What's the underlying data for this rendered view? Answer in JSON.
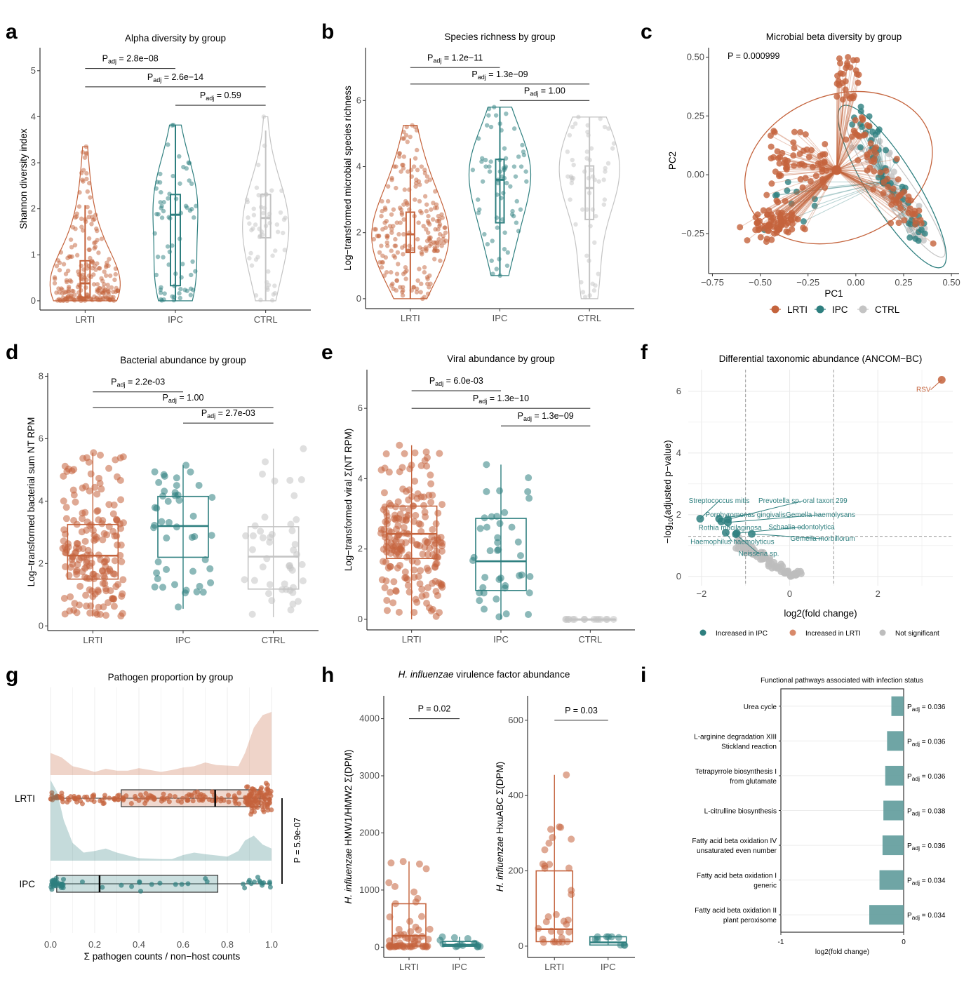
{
  "colors": {
    "LRTI": "#c4633c",
    "IPC": "#2e7f7f",
    "CTRL": "#c4c4c4"
  },
  "chart_data": [
    {
      "panel": "a",
      "type": "violin",
      "title": "Alpha diversity by group",
      "xlabel": "",
      "ylabel": "Shannon diversity index",
      "categories": [
        "LRTI",
        "IPC",
        "CTRL"
      ],
      "ylim": [
        -0.2,
        5.5
      ],
      "yticks": [
        0,
        1,
        2,
        3,
        4,
        5
      ],
      "box": [
        {
          "group": "LRTI",
          "min": 0,
          "q1": 0.08,
          "median": 0.38,
          "q3": 0.87,
          "max": 2.08,
          "vmax": 3.35
        },
        {
          "group": "IPC",
          "min": 0,
          "q1": 0.33,
          "median": 1.87,
          "q3": 2.31,
          "max": 3.82,
          "vmax": 3.82
        },
        {
          "group": "CTRL",
          "min": 0,
          "q1": 1.37,
          "median": 1.8,
          "q3": 2.31,
          "max": 3.7,
          "vmax": 4.0
        }
      ],
      "comparisons": [
        {
          "from": "LRTI",
          "to": "IPC",
          "label": "2.8e−08",
          "y": 5.05
        },
        {
          "from": "LRTI",
          "to": "CTRL",
          "label": "2.6e−14",
          "y": 4.65
        },
        {
          "from": "IPC",
          "to": "CTRL",
          "label": "0.59",
          "y": 4.25
        }
      ]
    },
    {
      "panel": "b",
      "type": "violin",
      "title": "Species richness by group",
      "xlabel": "",
      "ylabel": "Log−transformed microbial species richness",
      "categories": [
        "LRTI",
        "IPC",
        "CTRL"
      ],
      "ylim": [
        -0.3,
        7.6
      ],
      "yticks": [
        0,
        2,
        4,
        6
      ],
      "box": [
        {
          "group": "LRTI",
          "min": 0,
          "q1": 1.4,
          "median": 1.95,
          "q3": 2.62,
          "max": 4.25,
          "vmax": 5.25
        },
        {
          "group": "IPC",
          "min": 0.7,
          "q1": 2.3,
          "median": 3.6,
          "q3": 4.22,
          "max": 5.8,
          "vmax": 5.8
        },
        {
          "group": "CTRL",
          "min": 0,
          "q1": 2.4,
          "median": 3.35,
          "q3": 4.02,
          "max": 5.5,
          "vmax": 5.5
        }
      ],
      "comparisons": [
        {
          "from": "LRTI",
          "to": "IPC",
          "label": "1.2e−11",
          "y": 7.0
        },
        {
          "from": "LRTI",
          "to": "CTRL",
          "label": "1.3e−09",
          "y": 6.5
        },
        {
          "from": "IPC",
          "to": "CTRL",
          "label": "1.00",
          "y": 6.0
        }
      ]
    },
    {
      "panel": "c",
      "type": "scatter",
      "title": "Microbial beta diversity by group",
      "xlabel": "PC1",
      "ylabel": "PC2",
      "xlim": [
        -0.77,
        0.54
      ],
      "ylim": [
        -0.42,
        0.54
      ],
      "xticks": [
        -0.75,
        -0.5,
        -0.25,
        0.0,
        0.25,
        0.5
      ],
      "xticklabels": [
        "−0.75",
        "−0.50",
        "−0.25",
        "0.00",
        "0.25",
        "0.50"
      ],
      "yticks": [
        -0.25,
        0.0,
        0.25,
        0.5
      ],
      "yticklabels": [
        "−0.25",
        "0.00",
        "0.25",
        "0.50"
      ],
      "annotation": "P = 0.000999",
      "centroids": [
        {
          "group": "LRTI",
          "x": -0.1,
          "y": 0.02
        },
        {
          "group": "IPC",
          "x": 0.15,
          "y": -0.03
        },
        {
          "group": "CTRL",
          "x": 0.19,
          "y": -0.03
        }
      ],
      "legend": [
        "LRTI",
        "IPC",
        "CTRL"
      ],
      "legend_position": "bottom"
    },
    {
      "panel": "d",
      "type": "box",
      "title": "Bacterial abundance by group",
      "xlabel": "",
      "ylabel": "Log−transformed bacterial sum NT RPM",
      "categories": [
        "LRTI",
        "IPC",
        "CTRL"
      ],
      "ylim": [
        -0.15,
        8.1
      ],
      "yticks": [
        0,
        2,
        4,
        6,
        8
      ],
      "box": [
        {
          "group": "LRTI",
          "min": 0.3,
          "q1": 1.5,
          "median": 2.25,
          "q3": 3.25,
          "max": 5.55
        },
        {
          "group": "IPC",
          "min": 0.55,
          "q1": 2.2,
          "median": 3.2,
          "q3": 4.15,
          "max": 5.15
        },
        {
          "group": "CTRL",
          "min": 0.28,
          "q1": 1.18,
          "median": 2.22,
          "q3": 3.18,
          "max": 5.68
        }
      ],
      "comparisons": [
        {
          "from": "LRTI",
          "to": "IPC",
          "label": "2.2e-03",
          "y": 7.5
        },
        {
          "from": "LRTI",
          "to": "CTRL",
          "label": "1.00",
          "y": 7.0
        },
        {
          "from": "IPC",
          "to": "CTRL",
          "label": "2.7e-03",
          "y": 6.5
        }
      ]
    },
    {
      "panel": "e",
      "type": "box",
      "title": "Viral abundance by group",
      "xlabel": "",
      "ylabel": "Log−transformed viral Σ(NT RPM)",
      "categories": [
        "LRTI",
        "IPC",
        "CTRL"
      ],
      "ylim": [
        -0.3,
        7.1
      ],
      "yticks": [
        0,
        2,
        4,
        6
      ],
      "box": [
        {
          "group": "LRTI",
          "min": 0,
          "q1": 1.73,
          "median": 2.43,
          "q3": 3.22,
          "max": 4.95
        },
        {
          "group": "IPC",
          "min": 0,
          "q1": 0.82,
          "median": 1.65,
          "q3": 2.87,
          "max": 4.4
        },
        {
          "group": "CTRL",
          "min": 0,
          "q1": 0,
          "median": 0,
          "q3": 0,
          "max": 0
        }
      ],
      "comparisons": [
        {
          "from": "LRTI",
          "to": "IPC",
          "label": "6.0e-03",
          "y": 6.5
        },
        {
          "from": "LRTI",
          "to": "CTRL",
          "label": "1.3e−10",
          "y": 6.0
        },
        {
          "from": "IPC",
          "to": "CTRL",
          "label": "1.3e−09",
          "y": 5.5
        }
      ]
    },
    {
      "panel": "f",
      "type": "scatter",
      "title": "Differential taxonomic abundance (ANCOM−BC)",
      "xlabel": "log2(fold change)",
      "ylabel": "−log10(adjusted p−value)",
      "xlim": [
        -2.3,
        3.7
      ],
      "ylim": [
        -0.3,
        6.7
      ],
      "xticks": [
        -2,
        0,
        2
      ],
      "xticklabels": [
        "−2",
        "0",
        "2"
      ],
      "yticks": [
        0,
        2,
        4,
        6
      ],
      "thresholds": {
        "x": [
          -1,
          1
        ],
        "y": 1.3
      },
      "points": [
        {
          "label": "RSV",
          "x": 3.45,
          "y": 6.37,
          "class": "Increased in LRTI",
          "lx": 3.2,
          "ly": 6.05
        },
        {
          "label": "Streptococcus mitis",
          "x": -2.03,
          "y": 1.87,
          "class": "Increased in IPC",
          "lx": -1.6,
          "ly": 2.45
        },
        {
          "label": "Prevotella sp. oral taxon 299",
          "x": -1.4,
          "y": 1.85,
          "class": "Increased in IPC",
          "lx": 0.3,
          "ly": 2.45
        },
        {
          "label": "Porphyromonas gingivalis",
          "x": -1.6,
          "y": 1.87,
          "class": "Increased in IPC",
          "lx": -1.0,
          "ly": 2.0
        },
        {
          "label": "Gemella haemolysans",
          "x": -1.4,
          "y": 1.75,
          "class": "Increased in IPC",
          "lx": 0.7,
          "ly": 2.0
        },
        {
          "label": "Rothia mucilaginosa",
          "x": -1.55,
          "y": 1.78,
          "class": "Increased in IPC",
          "lx": -1.35,
          "ly": 1.58
        },
        {
          "label": "Schaalia odontolytica",
          "x": -1.2,
          "y": 1.4,
          "class": "Increased in IPC",
          "lx": 0.27,
          "ly": 1.6
        },
        {
          "label": "Haemophilus haemolyticus",
          "x": -1.45,
          "y": 1.42,
          "class": "Increased in IPC",
          "lx": -1.3,
          "ly": 1.12
        },
        {
          "label": "Gemella morbillorum",
          "x": -0.86,
          "y": 1.38,
          "class": "Increased in IPC",
          "lx": 0.75,
          "ly": 1.22
        },
        {
          "label": "Neisseria sp.",
          "x": -1.22,
          "y": 1.37,
          "class": "Increased in IPC",
          "lx": -0.7,
          "ly": 0.73
        }
      ],
      "legend": [
        "Increased in IPC",
        "Increased in LRTI",
        "Not significant"
      ],
      "legend_position": "bottom"
    },
    {
      "panel": "g",
      "type": "raincloud",
      "title": "Pathogen proportion by group",
      "xlabel": "Σ pathogen counts / non−host counts",
      "ylabel": "",
      "categories": [
        "LRTI",
        "IPC"
      ],
      "xlim": [
        0,
        1
      ],
      "xticks": [
        0.0,
        0.2,
        0.4,
        0.6,
        0.8,
        1.0
      ],
      "xticklabels": [
        "0.0",
        "0.2",
        "0.4",
        "0.6",
        "0.8",
        "1.0"
      ],
      "box": [
        {
          "group": "LRTI",
          "min": 0.0,
          "q1": 0.32,
          "median": 0.745,
          "q3": 0.948,
          "max": 1.0
        },
        {
          "group": "IPC",
          "min": 0.0,
          "q1": 0.028,
          "median": 0.222,
          "q3": 0.757,
          "max": 1.0
        }
      ],
      "density": [
        {
          "group": "LRTI",
          "x": [
            0,
            0.05,
            0.1,
            0.15,
            0.2,
            0.25,
            0.3,
            0.35,
            0.4,
            0.45,
            0.5,
            0.55,
            0.6,
            0.65,
            0.7,
            0.75,
            0.8,
            0.85,
            0.88,
            0.92,
            0.96,
            1.0
          ],
          "y": [
            0.35,
            0.28,
            0.14,
            0.1,
            0.05,
            0.1,
            0.07,
            0.07,
            0.11,
            0.08,
            0.05,
            0.08,
            0.12,
            0.14,
            0.2,
            0.16,
            0.15,
            0.14,
            0.35,
            0.75,
            0.95,
            1.0
          ]
        },
        {
          "group": "IPC",
          "x": [
            0,
            0.03,
            0.06,
            0.1,
            0.15,
            0.2,
            0.25,
            0.3,
            0.4,
            0.5,
            0.55,
            0.6,
            0.65,
            0.7,
            0.8,
            0.85,
            0.88,
            0.92,
            0.96,
            1.0
          ],
          "y": [
            1.0,
            0.85,
            0.5,
            0.22,
            0.1,
            0.12,
            0.15,
            0.1,
            0.03,
            0.02,
            0.02,
            0.07,
            0.1,
            0.08,
            0.05,
            0.12,
            0.25,
            0.31,
            0.2,
            0.15
          ]
        }
      ],
      "annotation": "P = 5.9e-07"
    },
    {
      "panel": "h1",
      "type": "box",
      "title": "H. influenzae virulence factor abundance",
      "title_italic": "H. influenzae",
      "title_rest": " virulence factor abundance",
      "xlabel": "",
      "ylabel_italic": "H. influenzae",
      "ylabel": " HMW1/HMW2 Σ(DPM)",
      "categories": [
        "LRTI",
        "IPC"
      ],
      "ylim": [
        -180,
        4400
      ],
      "yticks": [
        0,
        1000,
        2000,
        3000,
        4000
      ],
      "box": [
        {
          "group": "LRTI",
          "min": 0,
          "q1": 20,
          "median": 200,
          "q3": 760,
          "max": 1500
        },
        {
          "group": "IPC",
          "min": 0,
          "q1": 15,
          "median": 40,
          "q3": 100,
          "max": 180
        }
      ],
      "comparisons": [
        {
          "from": "LRTI",
          "to": "IPC",
          "label": "P = 0.02",
          "y": 4000
        }
      ]
    },
    {
      "panel": "h2",
      "type": "box",
      "title": "",
      "xlabel": "",
      "ylabel_italic": "H. influenzae",
      "ylabel": " HxuABC Σ(DPM)",
      "categories": [
        "LRTI",
        "IPC"
      ],
      "ylim": [
        -30,
        665
      ],
      "yticks": [
        0,
        200,
        400,
        600
      ],
      "box": [
        {
          "group": "LRTI",
          "min": 10,
          "q1": 12,
          "median": 45,
          "q3": 200,
          "max": 455
        },
        {
          "group": "IPC",
          "min": 2,
          "q1": 3,
          "median": 10,
          "q3": 25,
          "max": 25
        }
      ],
      "comparisons": [
        {
          "from": "LRTI",
          "to": "IPC",
          "label": "P = 0.03",
          "y": 600
        }
      ]
    },
    {
      "panel": "i",
      "type": "bar",
      "orientation": "horizontal",
      "title": "Functional pathways associated with infection status",
      "xlabel": "log2(fold change)",
      "ylabel": "",
      "xlim": [
        -1,
        0
      ],
      "xticks": [
        -1,
        0
      ],
      "xticklabels": [
        "-1",
        "0"
      ],
      "categories": [
        "Urea cycle",
        "L-arginine degradation XIII|Stickland reaction",
        "Tetrapyrrole biosynthesis I|from glutamate",
        "L-citrulline biosynthesis",
        "Fatty acid beta oxidation IV|unsaturated even number",
        "Fatty acid beta oxidation I|generic",
        "Fatty acid beta oxidation II|plant peroxisome"
      ],
      "values": [
        -0.1,
        -0.135,
        -0.15,
        -0.165,
        -0.172,
        -0.197,
        -0.28
      ],
      "padj": [
        "0.036",
        "0.036",
        "0.036",
        "0.038",
        "0.036",
        "0.034",
        "0.034"
      ]
    }
  ]
}
